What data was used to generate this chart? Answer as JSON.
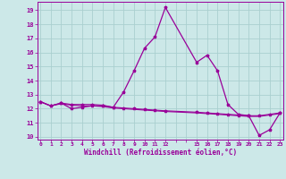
{
  "xlabel": "Windchill (Refroidissement éolien,°C)",
  "bg_color": "#cce8e8",
  "line_color": "#990099",
  "grid_color": "#aacfcf",
  "xtick_labels": [
    "0",
    "1",
    "2",
    "3",
    "4",
    "5",
    "6",
    "7",
    "8",
    "9",
    "10",
    "11",
    "12",
    "",
    "",
    "15",
    "16",
    "17",
    "18",
    "19",
    "20",
    "21",
    "22",
    "23"
  ],
  "xtick_positions": [
    0,
    1,
    2,
    3,
    4,
    5,
    6,
    7,
    8,
    9,
    10,
    11,
    12,
    13,
    14,
    15,
    16,
    17,
    18,
    19,
    20,
    21,
    22,
    23
  ],
  "yticks": [
    10,
    11,
    12,
    13,
    14,
    15,
    16,
    17,
    18,
    19
  ],
  "xlim": [
    -0.3,
    23.3
  ],
  "ylim": [
    9.8,
    19.6
  ],
  "series1_x": [
    0,
    1,
    2,
    3,
    4,
    5,
    6,
    7,
    8,
    9,
    10,
    11,
    12,
    15,
    16,
    17,
    18,
    19,
    20,
    21,
    22,
    23
  ],
  "series1_y": [
    12.5,
    12.2,
    12.4,
    12.0,
    12.1,
    12.2,
    12.2,
    12.1,
    13.2,
    14.7,
    16.3,
    17.1,
    19.2,
    15.3,
    15.8,
    14.7,
    12.3,
    11.6,
    11.5,
    10.1,
    10.5,
    11.7
  ],
  "series2_x": [
    0,
    1,
    2,
    3,
    4,
    5,
    6,
    7,
    8,
    9,
    10,
    11,
    12,
    15,
    16,
    17,
    18,
    19,
    20,
    21,
    22,
    23
  ],
  "series2_y": [
    12.5,
    12.2,
    12.4,
    12.3,
    12.3,
    12.3,
    12.25,
    12.1,
    12.05,
    12.0,
    11.95,
    11.9,
    11.85,
    11.75,
    11.7,
    11.65,
    11.6,
    11.55,
    11.5,
    11.5,
    11.6,
    11.7
  ],
  "series3_x": [
    0,
    1,
    2,
    3,
    4,
    5,
    6,
    7,
    8,
    9,
    10,
    11,
    12,
    15,
    16,
    17,
    18,
    19,
    20,
    21,
    22,
    23
  ],
  "series3_y": [
    12.5,
    12.2,
    12.35,
    12.25,
    12.2,
    12.2,
    12.15,
    12.05,
    12.0,
    11.95,
    11.9,
    11.85,
    11.8,
    11.7,
    11.65,
    11.6,
    11.55,
    11.5,
    11.45,
    11.45,
    11.55,
    11.65
  ]
}
